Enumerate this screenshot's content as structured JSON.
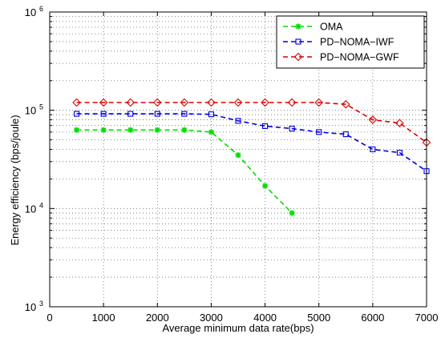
{
  "chart_data": {
    "type": "line",
    "xlabel": "Average minimum data rate(bps)",
    "ylabel": "Energy efficiency (bps/joule)",
    "xlim": [
      0,
      7000
    ],
    "ylim": [
      1000,
      1000000
    ],
    "yscale": "log",
    "grid": "dotted",
    "legend_position": "top-right",
    "x_ticks": [
      "0",
      "1000",
      "2000",
      "3000",
      "4000",
      "5000",
      "6000",
      "7000"
    ],
    "y_ticks": [
      {
        "base": "10",
        "exp": "3"
      },
      {
        "base": "10",
        "exp": "4"
      },
      {
        "base": "10",
        "exp": "5"
      },
      {
        "base": "10",
        "exp": "6"
      }
    ],
    "series": [
      {
        "name": "OMA",
        "color": "#00dd00",
        "marker": "asterisk",
        "x": [
          500,
          1000,
          1500,
          2000,
          2500,
          3000,
          3500,
          4000,
          4500
        ],
        "y": [
          63000,
          63000,
          63000,
          63000,
          63000,
          60000,
          35000,
          17000,
          9000
        ]
      },
      {
        "name": "PD−NOMA−IWF",
        "color": "#0000dd",
        "marker": "square",
        "x": [
          500,
          1000,
          1500,
          2000,
          2500,
          3000,
          3500,
          4000,
          4500,
          5000,
          5500,
          6000,
          6500,
          7000
        ],
        "y": [
          92000,
          92000,
          92000,
          92000,
          92000,
          91000,
          78000,
          69000,
          65000,
          60000,
          57000,
          40000,
          37000,
          24000
        ]
      },
      {
        "name": "PD−NOMA−GWF",
        "color": "#dd0000",
        "marker": "diamond",
        "x": [
          500,
          1000,
          1500,
          2000,
          2500,
          3000,
          3500,
          4000,
          4500,
          5000,
          5500,
          6000,
          6500,
          7000
        ],
        "y": [
          120000,
          120000,
          120000,
          120000,
          120000,
          120000,
          120000,
          120000,
          120000,
          120000,
          115000,
          80000,
          74000,
          47000
        ]
      }
    ]
  }
}
